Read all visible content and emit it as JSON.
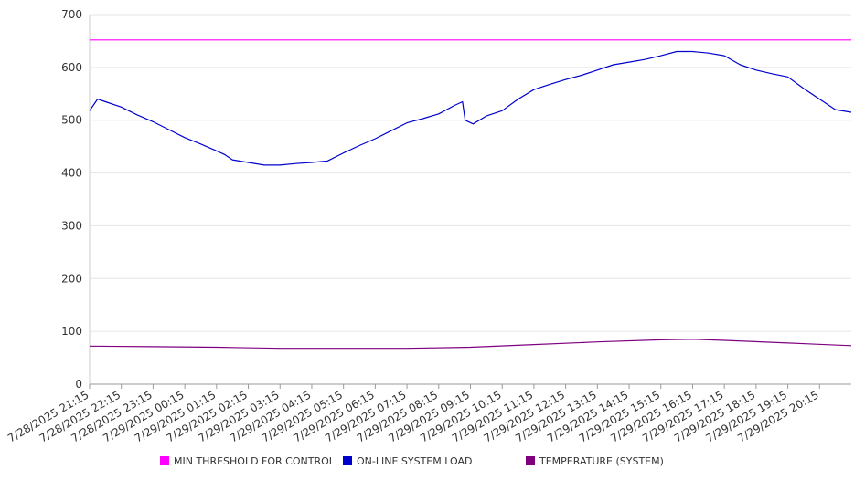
{
  "chart_data": {
    "type": "line",
    "title": "",
    "xlabel": "",
    "ylabel": "",
    "ylim": [
      0,
      700
    ],
    "y_ticks": [
      0,
      100,
      200,
      300,
      400,
      500,
      600,
      700
    ],
    "grid": "horizontal",
    "legend_position": "bottom",
    "x_tick_labels": [
      "7/28/2025 21:15",
      "7/28/2025 22:15",
      "7/28/2025 23:15",
      "7/29/2025 00:15",
      "7/29/2025 01:15",
      "7/29/2025 02:15",
      "7/29/2025 03:15",
      "7/29/2025 04:15",
      "7/29/2025 05:15",
      "7/29/2025 06:15",
      "7/29/2025 07:15",
      "7/29/2025 08:15",
      "7/29/2025 09:15",
      "7/29/2025 10:15",
      "7/29/2025 11:15",
      "7/29/2025 12:15",
      "7/29/2025 13:15",
      "7/29/2025 14:15",
      "7/29/2025 15:15",
      "7/29/2025 16:15",
      "7/29/2025 17:15",
      "7/29/2025 18:15",
      "7/29/2025 19:15",
      "7/29/2025 20:15"
    ],
    "series": [
      {
        "name": "MIN THRESHOLD FOR CONTROL",
        "color": "#ff00ff",
        "x": [
          "7/28/2025 21:15",
          "7/29/2025 21:15"
        ],
        "values": [
          652,
          652
        ]
      },
      {
        "name": "ON-LINE SYSTEM LOAD",
        "color": "#0000cc",
        "x": [
          "7/28/2025 21:15",
          "7/28/2025 21:30",
          "7/28/2025 21:45",
          "7/28/2025 22:15",
          "7/28/2025 22:45",
          "7/28/2025 23:15",
          "7/28/2025 23:45",
          "7/29/2025 00:15",
          "7/29/2025 00:45",
          "7/29/2025 01:15",
          "7/29/2025 01:30",
          "7/29/2025 01:45",
          "7/29/2025 02:15",
          "7/29/2025 02:45",
          "7/29/2025 03:15",
          "7/29/2025 03:45",
          "7/29/2025 04:15",
          "7/29/2025 04:45",
          "7/29/2025 05:15",
          "7/29/2025 05:45",
          "7/29/2025 06:15",
          "7/29/2025 06:45",
          "7/29/2025 07:15",
          "7/29/2025 07:45",
          "7/29/2025 08:15",
          "7/29/2025 08:45",
          "7/29/2025 09:00",
          "7/29/2025 09:05",
          "7/29/2025 09:20",
          "7/29/2025 09:35",
          "7/29/2025 09:45",
          "7/29/2025 10:15",
          "7/29/2025 10:45",
          "7/29/2025 11:15",
          "7/29/2025 11:45",
          "7/29/2025 12:15",
          "7/29/2025 12:45",
          "7/29/2025 13:15",
          "7/29/2025 13:45",
          "7/29/2025 14:15",
          "7/29/2025 14:45",
          "7/29/2025 15:15",
          "7/29/2025 15:45",
          "7/29/2025 16:15",
          "7/29/2025 16:45",
          "7/29/2025 17:15",
          "7/29/2025 17:45",
          "7/29/2025 18:15",
          "7/29/2025 18:45",
          "7/29/2025 19:15",
          "7/29/2025 19:45",
          "7/29/2025 20:15",
          "7/29/2025 20:45",
          "7/29/2025 21:15"
        ],
        "values": [
          518,
          540,
          535,
          525,
          510,
          497,
          482,
          467,
          455,
          442,
          435,
          425,
          420,
          415,
          415,
          418,
          420,
          423,
          438,
          452,
          465,
          480,
          495,
          503,
          512,
          528,
          535,
          500,
          493,
          502,
          508,
          518,
          540,
          558,
          568,
          577,
          585,
          595,
          605,
          610,
          615,
          622,
          630,
          630,
          627,
          622,
          605,
          595,
          588,
          582,
          560,
          540,
          520,
          515
        ]
      },
      {
        "name": "TEMPERATURE (SYSTEM)",
        "color": "#800080",
        "x": [
          "7/28/2025 21:15",
          "7/28/2025 23:15",
          "7/29/2025 01:15",
          "7/29/2025 03:15",
          "7/29/2025 05:15",
          "7/29/2025 07:15",
          "7/29/2025 09:15",
          "7/29/2025 11:15",
          "7/29/2025 13:15",
          "7/29/2025 15:15",
          "7/29/2025 16:15",
          "7/29/2025 17:15",
          "7/29/2025 19:15",
          "7/29/2025 21:15"
        ],
        "values": [
          72,
          71,
          70,
          68,
          68,
          68,
          70,
          75,
          80,
          84,
          85,
          83,
          78,
          73
        ]
      }
    ]
  }
}
